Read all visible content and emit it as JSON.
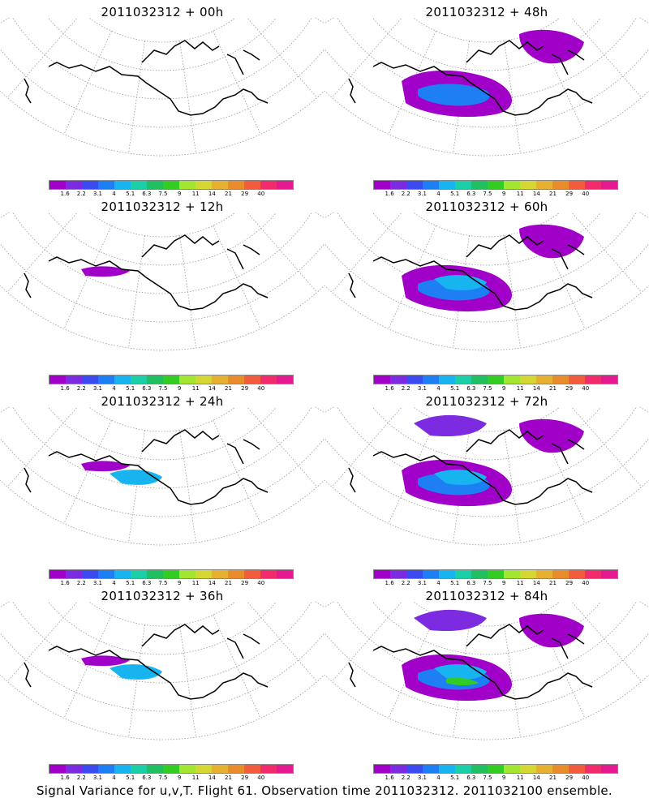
{
  "panels": [
    {
      "title": "2011032312 + 00h",
      "blobs": []
    },
    {
      "title": "2011032312 + 48h",
      "blobs": [
        1,
        2,
        3
      ]
    },
    {
      "title": "2011032312 + 12h",
      "blobs": [
        4
      ]
    },
    {
      "title": "2011032312 + 60h",
      "blobs": [
        1,
        2,
        3,
        5
      ]
    },
    {
      "title": "2011032312 + 24h",
      "blobs": [
        4,
        5
      ]
    },
    {
      "title": "2011032312 + 72h",
      "blobs": [
        1,
        2,
        3,
        5,
        6
      ]
    },
    {
      "title": "2011032312 + 36h",
      "blobs": [
        4,
        5
      ]
    },
    {
      "title": "2011032312 + 84h",
      "blobs": [
        1,
        2,
        3,
        5,
        6,
        7
      ]
    }
  ],
  "colorbar": {
    "labels": [
      "1.6",
      "2.2",
      "3.1",
      "4",
      "5.1",
      "6.3",
      "7.5",
      "9",
      "11",
      "14",
      "21",
      "29",
      "40"
    ],
    "colors": [
      "#a000c8",
      "#7d2be0",
      "#3a4bf0",
      "#1e7ff5",
      "#18b4f0",
      "#1ccfa6",
      "#20c060",
      "#33cc22",
      "#a2e632",
      "#d6d633",
      "#e6b032",
      "#e88c2c",
      "#f05c3c",
      "#f02c6c",
      "#e61a90"
    ]
  },
  "footer": "Signal Variance for u,v,T. Flight 61. Observation time 2011032312. 2011032100 ensemble."
}
